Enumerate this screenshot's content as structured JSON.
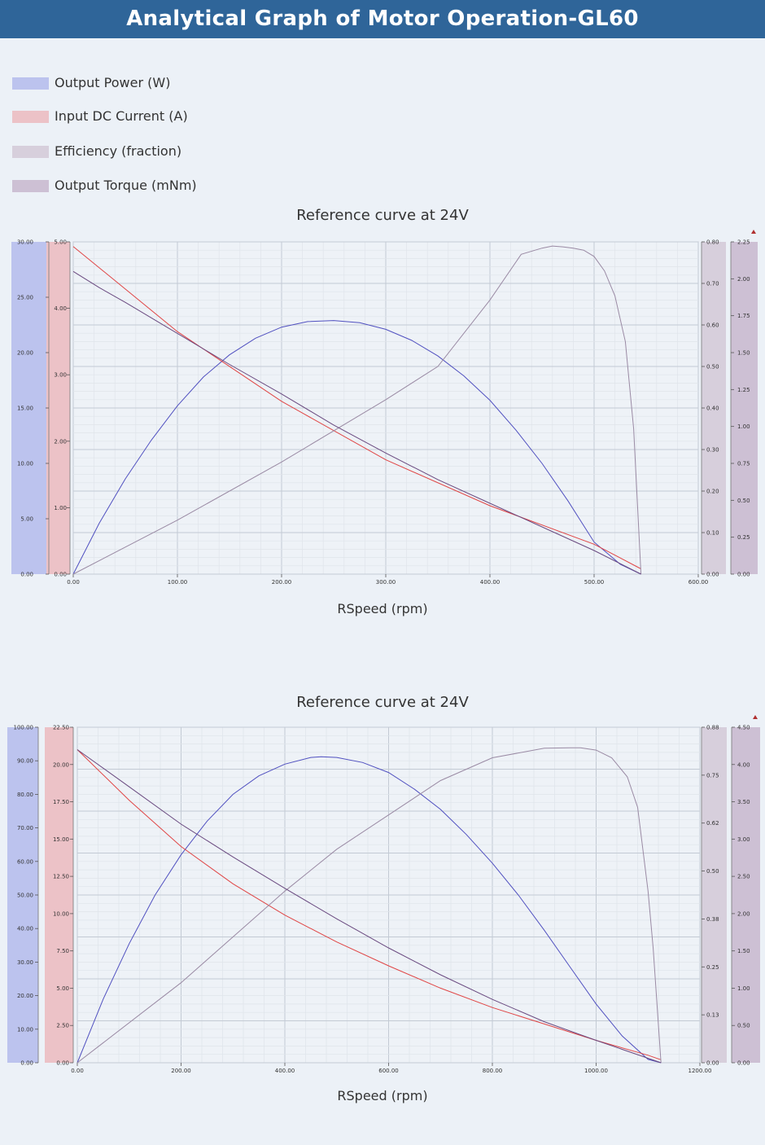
{
  "page": {
    "title": "Analytical Graph of Motor Operation-GL60"
  },
  "legend": {
    "items": [
      {
        "label": "Output Power (W)",
        "color": "#bcc3ee"
      },
      {
        "label": "Input DC Current (A)",
        "color": "#ecc2c7"
      },
      {
        "label": "Efficiency (fraction)",
        "color": "#d7cfdc"
      },
      {
        "label": "Output Torque (mNm)",
        "color": "#cdc0d4"
      }
    ]
  },
  "chart_data": [
    {
      "type": "line",
      "title": "Reference curve at 24V",
      "xlabel": "RSpeed (rpm)",
      "xlim": [
        0,
        600
      ],
      "xticks": [
        "0.00",
        "100.00",
        "200.00",
        "300.00",
        "400.00",
        "500.00",
        "600.00"
      ],
      "axes": {
        "power": {
          "ylim": [
            0,
            30
          ],
          "ticks": [
            "0.00",
            "5.00",
            "10.00",
            "15.00",
            "20.00",
            "25.00",
            "30.00"
          ]
        },
        "current": {
          "ylim": [
            0,
            5
          ],
          "ticks": [
            "0.00",
            "1.00",
            "2.00",
            "3.00",
            "4.00",
            "5.00"
          ]
        },
        "efficiency": {
          "ylim": [
            0,
            0.8
          ],
          "ticks": [
            "0.00",
            "0.10",
            "0.20",
            "0.30",
            "0.40",
            "0.50",
            "0.60",
            "0.70",
            "0.80"
          ]
        },
        "torque": {
          "ylim": [
            0,
            2.25
          ],
          "ticks": [
            "0.00",
            "0.25",
            "0.50",
            "0.75",
            "1.00",
            "1.25",
            "1.50",
            "1.75",
            "2.00",
            "2.25"
          ]
        }
      },
      "series": [
        {
          "name": "Output Power (W)",
          "axis": "power",
          "color": "#5050c0",
          "x": [
            0,
            25,
            50,
            75,
            100,
            125,
            150,
            175,
            200,
            225,
            250,
            275,
            300,
            325,
            350,
            375,
            400,
            425,
            450,
            475,
            500,
            525,
            545
          ],
          "y": [
            0,
            4.6,
            8.6,
            12.1,
            15.2,
            17.8,
            19.8,
            21.3,
            22.3,
            22.8,
            22.9,
            22.7,
            22.1,
            21.1,
            19.7,
            17.9,
            15.7,
            13.0,
            10.0,
            6.6,
            2.9,
            0.9,
            0
          ]
        },
        {
          "name": "Input DC Current (A)",
          "axis": "current",
          "color": "#e04545",
          "x": [
            0,
            100,
            200,
            300,
            400,
            500,
            545
          ],
          "y": [
            4.93,
            3.65,
            2.6,
            1.72,
            1.03,
            0.45,
            0.08
          ]
        },
        {
          "name": "Efficiency (fraction)",
          "axis": "efficiency",
          "color": "#9a8aa4",
          "x": [
            0,
            100,
            200,
            300,
            350,
            400,
            430,
            450,
            460,
            470,
            480,
            490,
            500,
            510,
            520,
            530,
            538,
            545
          ],
          "y": [
            0,
            0.13,
            0.27,
            0.42,
            0.5,
            0.66,
            0.77,
            0.785,
            0.79,
            0.788,
            0.785,
            0.78,
            0.765,
            0.73,
            0.67,
            0.56,
            0.35,
            0.0
          ]
        },
        {
          "name": "Output Torque (mNm)",
          "axis": "torque",
          "color": "#6a4a80",
          "x": [
            0,
            25,
            50,
            100,
            150,
            200,
            250,
            300,
            350,
            400,
            450,
            500,
            545
          ],
          "y": [
            2.05,
            1.94,
            1.84,
            1.63,
            1.42,
            1.22,
            1.01,
            0.82,
            0.64,
            0.48,
            0.32,
            0.16,
            0
          ]
        }
      ]
    },
    {
      "type": "line",
      "title": "Reference curve at 24V",
      "xlabel": "RSpeed (rpm)",
      "xlim": [
        0,
        1200
      ],
      "xticks": [
        "0.00",
        "200.00",
        "400.00",
        "600.00",
        "800.00",
        "1000.00",
        "1200.00"
      ],
      "axes": {
        "power": {
          "ylim": [
            0,
            100
          ],
          "ticks": [
            "0.00",
            "10.00",
            "20.00",
            "30.00",
            "40.00",
            "50.00",
            "60.00",
            "70.00",
            "80.00",
            "90.00",
            "100.00"
          ]
        },
        "current": {
          "ylim": [
            0,
            22.5
          ],
          "ticks": [
            "0.00",
            "2.50",
            "5.00",
            "7.50",
            "10.00",
            "12.50",
            "15.00",
            "17.50",
            "20.00",
            "22.50"
          ]
        },
        "efficiency": {
          "ylim": [
            0,
            0.88
          ],
          "ticks": [
            "0.00",
            "0.13",
            "0.25",
            "0.38",
            "0.50",
            "0.62",
            "0.75",
            "0.88"
          ]
        },
        "torque": {
          "ylim": [
            0,
            4.5
          ],
          "ticks": [
            "0.00",
            "0.50",
            "1.00",
            "1.50",
            "2.00",
            "2.50",
            "3.00",
            "3.50",
            "4.00",
            "4.50"
          ]
        }
      },
      "series": [
        {
          "name": "Output Power (W)",
          "axis": "power",
          "color": "#5050c0",
          "x": [
            0,
            50,
            100,
            150,
            200,
            250,
            300,
            350,
            400,
            450,
            470,
            500,
            550,
            600,
            650,
            700,
            750,
            800,
            850,
            900,
            950,
            1000,
            1050,
            1100,
            1125
          ],
          "y": [
            0,
            19,
            35.5,
            50,
            62,
            72,
            80,
            85.5,
            89,
            91,
            91.2,
            91,
            89.5,
            86.5,
            81.5,
            75.5,
            68,
            59.5,
            50,
            39.5,
            28.5,
            17.5,
            8,
            1,
            0
          ]
        },
        {
          "name": "Input DC Current (A)",
          "axis": "current",
          "color": "#e04545",
          "x": [
            0,
            100,
            200,
            300,
            400,
            500,
            600,
            700,
            800,
            900,
            1000,
            1100,
            1125
          ],
          "y": [
            21,
            17.6,
            14.5,
            12,
            9.9,
            8.1,
            6.5,
            5,
            3.7,
            2.6,
            1.5,
            0.5,
            0.2
          ]
        },
        {
          "name": "Efficiency (fraction)",
          "axis": "efficiency",
          "color": "#9a8aa4",
          "x": [
            0,
            200,
            400,
            500,
            600,
            700,
            800,
            900,
            950,
            970,
            1000,
            1030,
            1060,
            1080,
            1100,
            1110,
            1125
          ],
          "y": [
            0,
            0.21,
            0.45,
            0.56,
            0.65,
            0.74,
            0.8,
            0.825,
            0.826,
            0.826,
            0.82,
            0.8,
            0.75,
            0.67,
            0.45,
            0.3,
            0
          ]
        },
        {
          "name": "Output Torque (mNm)",
          "axis": "torque",
          "color": "#6a4a80",
          "x": [
            0,
            100,
            200,
            300,
            400,
            500,
            600,
            700,
            800,
            900,
            1000,
            1100,
            1125
          ],
          "y": [
            4.2,
            3.7,
            3.2,
            2.76,
            2.34,
            1.93,
            1.54,
            1.18,
            0.85,
            0.55,
            0.3,
            0.06,
            0
          ]
        }
      ]
    }
  ]
}
